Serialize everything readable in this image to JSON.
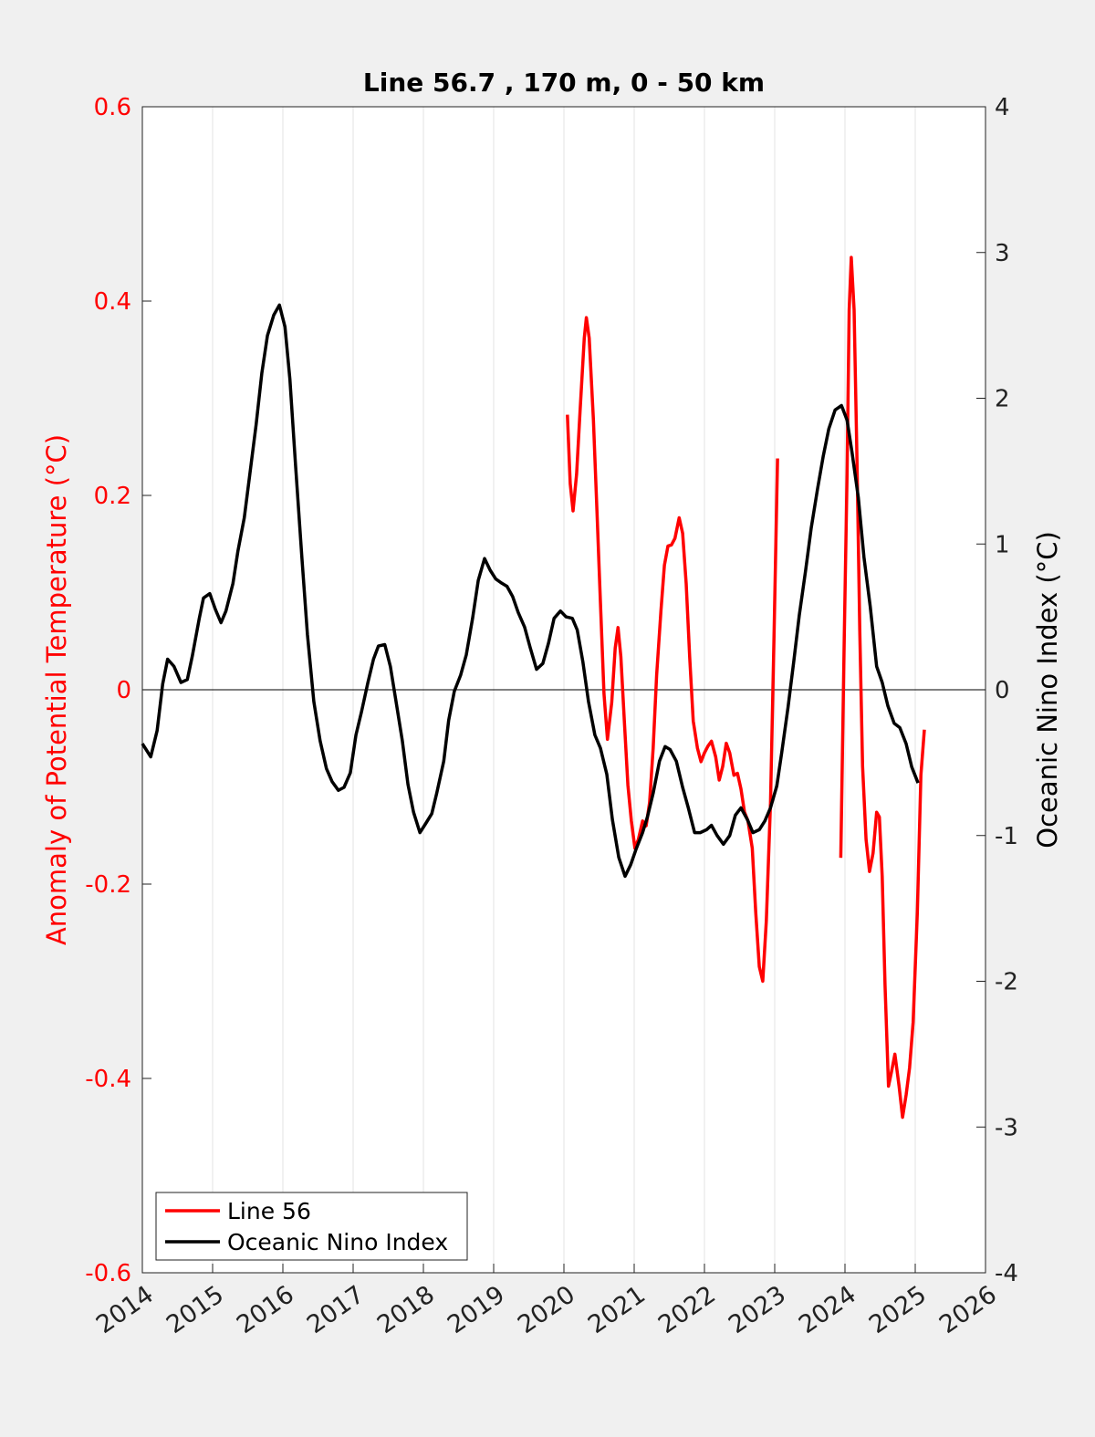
{
  "chart_data": {
    "type": "line",
    "title": "Line 56.7 , 170 m, 0 - 50 km",
    "ylabel": "Anomaly of Potential Temperature (°C)",
    "y2label": "Oceanic Nino Index (°C)",
    "xlim": [
      2014,
      2026
    ],
    "xticks": [
      2014,
      2015,
      2016,
      2017,
      2018,
      2019,
      2020,
      2021,
      2022,
      2023,
      2024,
      2025,
      2026
    ],
    "ylim": [
      -0.6,
      0.6
    ],
    "yticks": [
      -0.6,
      -0.4,
      -0.2,
      0,
      0.2,
      0.4,
      0.6
    ],
    "y2lim": [
      -4,
      4
    ],
    "y2ticks": [
      -4,
      -3,
      -2,
      -1,
      0,
      1,
      2,
      3,
      4
    ],
    "grid": "x",
    "reference_line": 0,
    "legend": "lower left",
    "ylabel_color": "#ff0000",
    "series": [
      {
        "name": "Line 56",
        "color": "#ff0000",
        "x": [
          2020.05,
          2020.09,
          2020.13,
          2020.18,
          2020.23,
          2020.29,
          2020.32,
          2020.36,
          2020.42,
          2020.47,
          2020.52,
          2020.57,
          2020.62,
          2020.68,
          2020.73,
          2020.77,
          2020.81,
          2020.86,
          2020.91,
          2020.96,
          2021.01,
          2021.06,
          2021.12,
          2021.17,
          2021.22,
          2021.27,
          2021.32,
          2021.38,
          2021.43,
          2021.48,
          2021.53,
          2021.58,
          2021.64,
          2021.69,
          2021.74,
          2021.79,
          2021.84,
          2021.9,
          2021.95,
          2022.0,
          2022.05,
          2022.1,
          2022.16,
          2022.21,
          2022.26,
          2022.31,
          2022.36,
          2022.42,
          2022.47,
          2022.52,
          2022.57,
          2022.62,
          2022.68,
          2022.73,
          2022.78,
          2022.83,
          2022.88,
          2022.94,
          2022.99,
          2023.04,
          null,
          2023.94,
          2023.99,
          2024.03,
          2024.06,
          2024.09,
          2024.13,
          2024.17,
          2024.21,
          2024.25,
          2024.3,
          2024.35,
          2024.4,
          2024.45,
          2024.49,
          2024.53,
          2024.57,
          2024.62,
          2024.66,
          2024.71,
          2024.77,
          2024.82,
          2024.87,
          2024.92,
          2024.97,
          2025.03,
          2025.08,
          2025.13
        ],
        "values": [
          0.283,
          0.212,
          0.184,
          0.222,
          0.287,
          0.362,
          0.383,
          0.362,
          0.278,
          0.184,
          0.09,
          -0.004,
          -0.051,
          -0.013,
          0.043,
          0.064,
          0.034,
          -0.032,
          -0.098,
          -0.135,
          -0.163,
          -0.154,
          -0.135,
          -0.14,
          -0.116,
          -0.06,
          0.015,
          0.081,
          0.128,
          0.148,
          0.149,
          0.156,
          0.177,
          0.161,
          0.109,
          0.034,
          -0.032,
          -0.06,
          -0.074,
          -0.065,
          -0.058,
          -0.053,
          -0.069,
          -0.093,
          -0.079,
          -0.055,
          -0.065,
          -0.088,
          -0.086,
          -0.102,
          -0.126,
          -0.135,
          -0.163,
          -0.229,
          -0.285,
          -0.3,
          -0.238,
          -0.116,
          0.053,
          0.238,
          null,
          -0.173,
          0.053,
          0.222,
          0.391,
          0.445,
          0.391,
          0.24,
          0.062,
          -0.079,
          -0.154,
          -0.187,
          -0.168,
          -0.126,
          -0.131,
          -0.192,
          -0.304,
          -0.408,
          -0.394,
          -0.375,
          -0.408,
          -0.44,
          -0.417,
          -0.389,
          -0.342,
          -0.229,
          -0.088,
          -0.041
        ]
      },
      {
        "name": "Oceanic Nino Index",
        "color": "#000000",
        "axis": "y2",
        "x": [
          2014.0,
          2014.12,
          2014.21,
          2014.29,
          2014.36,
          2014.45,
          2014.55,
          2014.64,
          2014.71,
          2014.81,
          2014.87,
          2014.96,
          2015.04,
          2015.12,
          2015.19,
          2015.29,
          2015.36,
          2015.45,
          2015.53,
          2015.62,
          2015.7,
          2015.78,
          2015.87,
          2015.95,
          2016.03,
          2016.1,
          2016.18,
          2016.27,
          2016.35,
          2016.44,
          2016.53,
          2016.62,
          2016.7,
          2016.79,
          2016.87,
          2016.96,
          2017.04,
          2017.12,
          2017.21,
          2017.29,
          2017.36,
          2017.45,
          2017.53,
          2017.61,
          2017.7,
          2017.78,
          2017.86,
          2017.95,
          2018.03,
          2018.12,
          2018.19,
          2018.29,
          2018.36,
          2018.44,
          2018.53,
          2018.61,
          2018.7,
          2018.78,
          2018.87,
          2018.95,
          2019.03,
          2019.12,
          2019.19,
          2019.27,
          2019.35,
          2019.44,
          2019.52,
          2019.61,
          2019.7,
          2019.78,
          2019.86,
          2019.95,
          2020.03,
          2020.12,
          2020.19,
          2020.27,
          2020.35,
          2020.44,
          2020.52,
          2020.61,
          2020.69,
          2020.78,
          2020.87,
          2020.95,
          2021.03,
          2021.12,
          2021.19,
          2021.27,
          2021.36,
          2021.44,
          2021.51,
          2021.6,
          2021.69,
          2021.77,
          2021.86,
          2021.94,
          2022.03,
          2022.1,
          2022.18,
          2022.27,
          2022.36,
          2022.44,
          2022.52,
          2022.61,
          2022.69,
          2022.78,
          2022.86,
          2022.94,
          2023.03,
          2023.1,
          2023.19,
          2023.27,
          2023.35,
          2023.44,
          2023.52,
          2023.61,
          2023.69,
          2023.77,
          2023.86,
          2023.95,
          2024.03,
          2024.1,
          2024.19,
          2024.27,
          2024.36,
          2024.45,
          2024.53,
          2024.61,
          2024.7,
          2024.78,
          2024.87,
          2024.95,
          2025.04
        ],
        "values": [
          -0.37,
          -0.46,
          -0.28,
          0.04,
          0.21,
          0.16,
          0.05,
          0.07,
          0.23,
          0.49,
          0.63,
          0.66,
          0.55,
          0.46,
          0.54,
          0.73,
          0.95,
          1.18,
          1.48,
          1.82,
          2.17,
          2.43,
          2.57,
          2.64,
          2.49,
          2.13,
          1.54,
          0.91,
          0.38,
          -0.08,
          -0.35,
          -0.54,
          -0.63,
          -0.69,
          -0.67,
          -0.57,
          -0.31,
          -0.15,
          0.05,
          0.21,
          0.3,
          0.31,
          0.16,
          -0.08,
          -0.35,
          -0.65,
          -0.84,
          -0.98,
          -0.92,
          -0.85,
          -0.71,
          -0.49,
          -0.21,
          -0.01,
          0.1,
          0.24,
          0.49,
          0.75,
          0.9,
          0.82,
          0.76,
          0.73,
          0.71,
          0.64,
          0.53,
          0.43,
          0.29,
          0.14,
          0.18,
          0.32,
          0.49,
          0.54,
          0.5,
          0.49,
          0.41,
          0.19,
          -0.08,
          -0.31,
          -0.4,
          -0.58,
          -0.89,
          -1.15,
          -1.28,
          -1.2,
          -1.09,
          -0.98,
          -0.87,
          -0.71,
          -0.49,
          -0.39,
          -0.41,
          -0.49,
          -0.67,
          -0.81,
          -0.98,
          -0.98,
          -0.96,
          -0.93,
          -1.0,
          -1.06,
          -1.0,
          -0.86,
          -0.81,
          -0.89,
          -0.98,
          -0.96,
          -0.9,
          -0.81,
          -0.66,
          -0.43,
          -0.12,
          0.19,
          0.51,
          0.82,
          1.11,
          1.38,
          1.6,
          1.79,
          1.92,
          1.95,
          1.85,
          1.63,
          1.32,
          0.91,
          0.57,
          0.16,
          0.05,
          -0.11,
          -0.23,
          -0.26,
          -0.37,
          -0.53,
          -0.64
        ]
      }
    ]
  }
}
